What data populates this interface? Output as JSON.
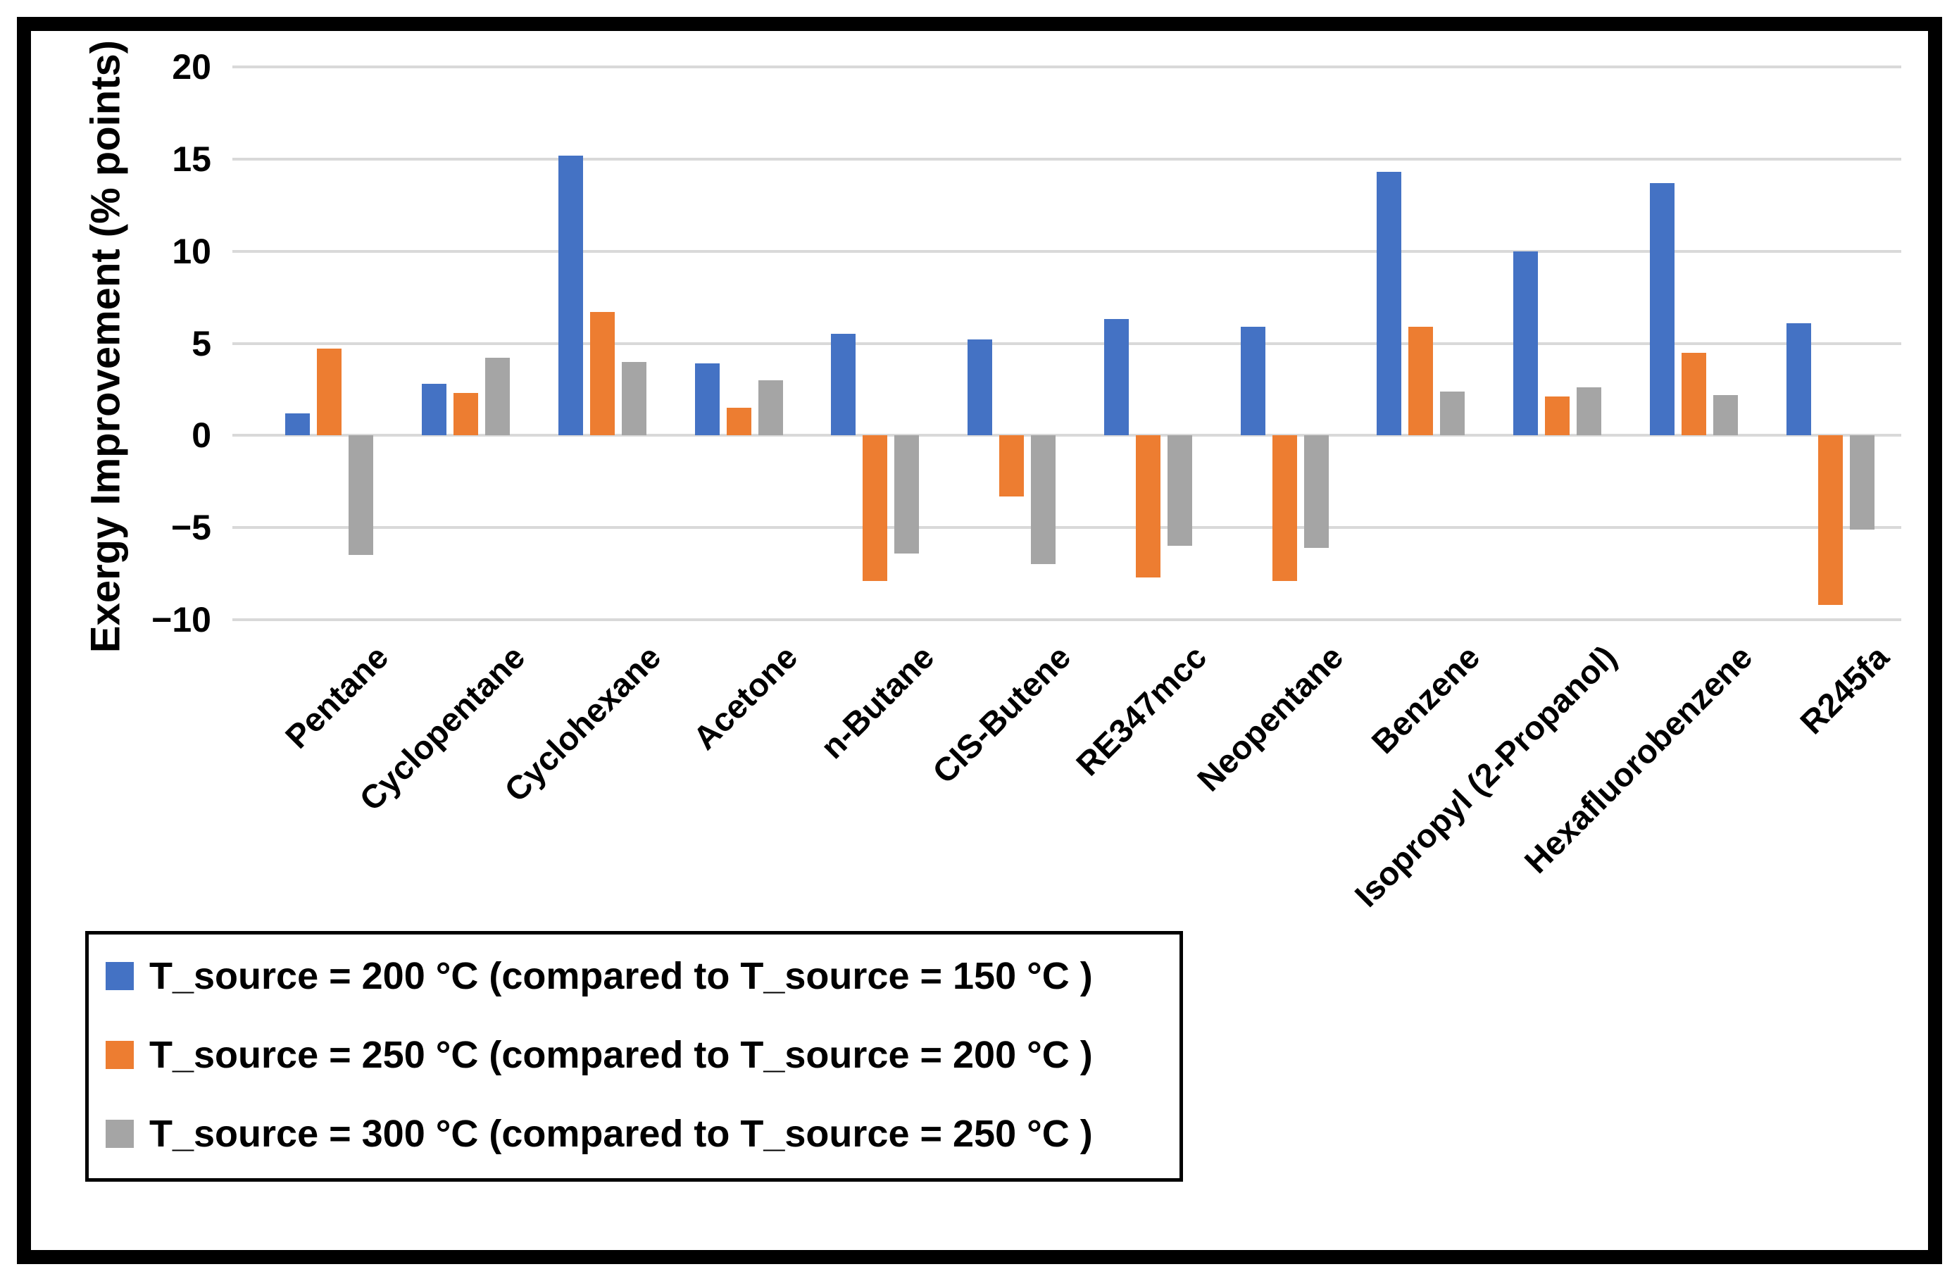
{
  "chart": {
    "y_axis_title": "Exergy Improvement (% points)",
    "y_ticks": [
      "20",
      "15",
      "10",
      "5",
      "0",
      "−5",
      "−10"
    ]
  },
  "legend": {
    "items": [
      {
        "label": "T_source = 200 °C (compared to T_source = 150 °C )",
        "color": "#4472C4"
      },
      {
        "label": "T_source = 250 °C (compared to T_source = 200 °C )",
        "color": "#ED7D31"
      },
      {
        "label": "T_source = 300 °C (compared to T_source = 250 °C )",
        "color": "#A5A5A5"
      }
    ]
  },
  "colors": {
    "series_blue": "#4472C4",
    "series_orange": "#ED7D31",
    "series_gray": "#A5A5A5",
    "gridline": "#D9D9D9",
    "frame_border": "#000000"
  },
  "chart_data": {
    "type": "bar",
    "title": "",
    "xlabel": "",
    "ylabel": "Exergy Improvement (% points)",
    "ylim": [
      -10,
      20
    ],
    "ytick_step": 5,
    "grid": true,
    "legend_position": "bottom-left",
    "categories": [
      "Pentane",
      "Cyclopentane",
      "Cyclohexane",
      "Acetone",
      "n-Butane",
      "CIS-Butene",
      "RE347mcc",
      "Neopentane",
      "Benzene",
      "Isopropyl (2-Propanol)",
      "Hexafluorobenzene",
      "R245fa"
    ],
    "series": [
      {
        "name": "T_source = 200 °C (compared to T_source = 150 °C )",
        "color": "#4472C4",
        "values": [
          1.2,
          2.8,
          15.2,
          3.9,
          5.5,
          5.2,
          6.3,
          5.9,
          14.3,
          10.0,
          13.7,
          6.1
        ]
      },
      {
        "name": "T_source = 250 °C (compared to T_source = 200 °C )",
        "color": "#ED7D31",
        "values": [
          4.7,
          2.3,
          6.7,
          1.5,
          -7.9,
          -3.3,
          -7.7,
          -7.9,
          5.9,
          2.1,
          4.5,
          -9.2
        ]
      },
      {
        "name": "T_source = 300 °C (compared to T_source = 250 °C )",
        "color": "#A5A5A5",
        "values": [
          -6.5,
          4.2,
          4.0,
          3.0,
          -6.4,
          -7.0,
          -6.0,
          -6.1,
          2.4,
          2.6,
          2.2,
          -5.1
        ]
      }
    ]
  }
}
